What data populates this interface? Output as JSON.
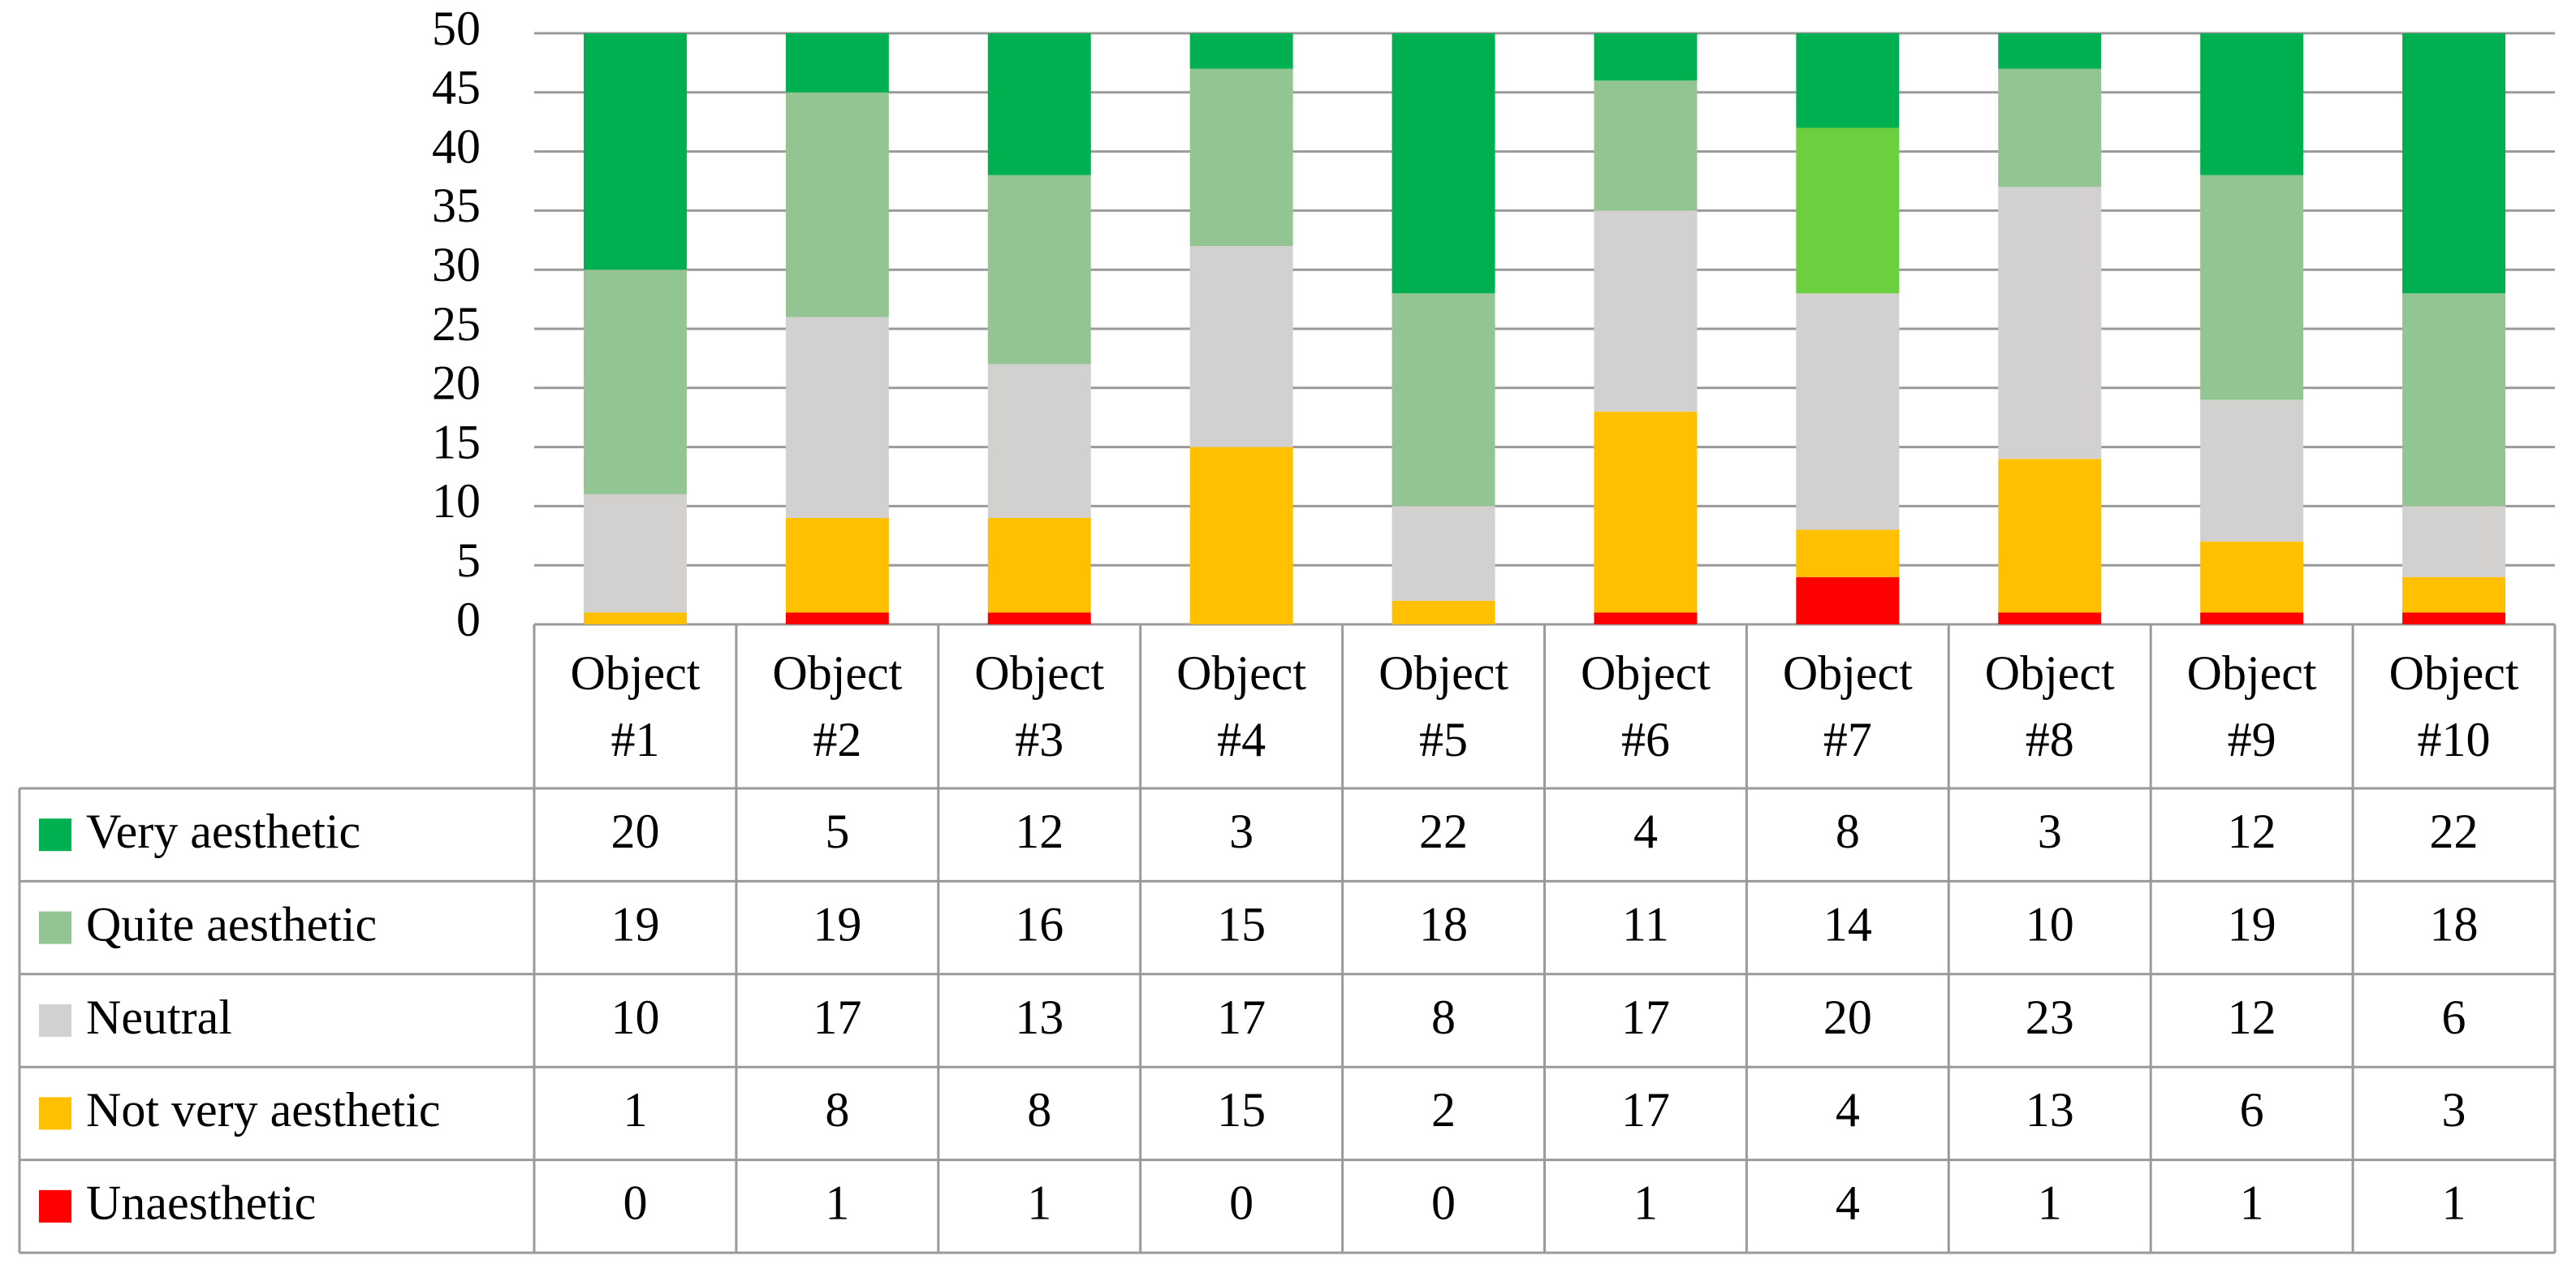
{
  "chart_data": {
    "type": "stacked_bar",
    "categories": [
      "Object #1",
      "Object #2",
      "Object #3",
      "Object #4",
      "Object #5",
      "Object #6",
      "Object #7",
      "Object #8",
      "Object #9",
      "Object #10"
    ],
    "series": [
      {
        "name": "Very aesthetic",
        "color": "#00b050",
        "values": [
          20,
          5,
          12,
          3,
          22,
          4,
          8,
          3,
          12,
          22
        ]
      },
      {
        "name": "Quite aesthetic",
        "color": "#93c592",
        "colors": [
          "#93c592",
          "#93c592",
          "#93c592",
          "#93c592",
          "#93c592",
          "#93c592",
          "#6ccf40",
          "#93c592",
          "#93c592",
          "#93c592"
        ],
        "values": [
          19,
          19,
          16,
          15,
          18,
          11,
          14,
          10,
          19,
          18
        ]
      },
      {
        "name": "Neutral",
        "color": "#d3d0d0",
        "values": [
          10,
          17,
          13,
          17,
          8,
          17,
          20,
          23,
          12,
          6
        ]
      },
      {
        "name": "Not very aesthetic",
        "color": "#ffc000",
        "values": [
          1,
          8,
          8,
          15,
          2,
          17,
          4,
          13,
          6,
          3
        ]
      },
      {
        "name": "Unaesthetic",
        "color": "#ff0000",
        "values": [
          0,
          1,
          1,
          0,
          0,
          1,
          4,
          1,
          1,
          1
        ]
      }
    ],
    "ylim": [
      0,
      50
    ],
    "yticks": [
      0,
      5,
      10,
      15,
      20,
      25,
      30,
      35,
      40,
      45,
      50
    ],
    "grid": true,
    "data_table": true
  }
}
